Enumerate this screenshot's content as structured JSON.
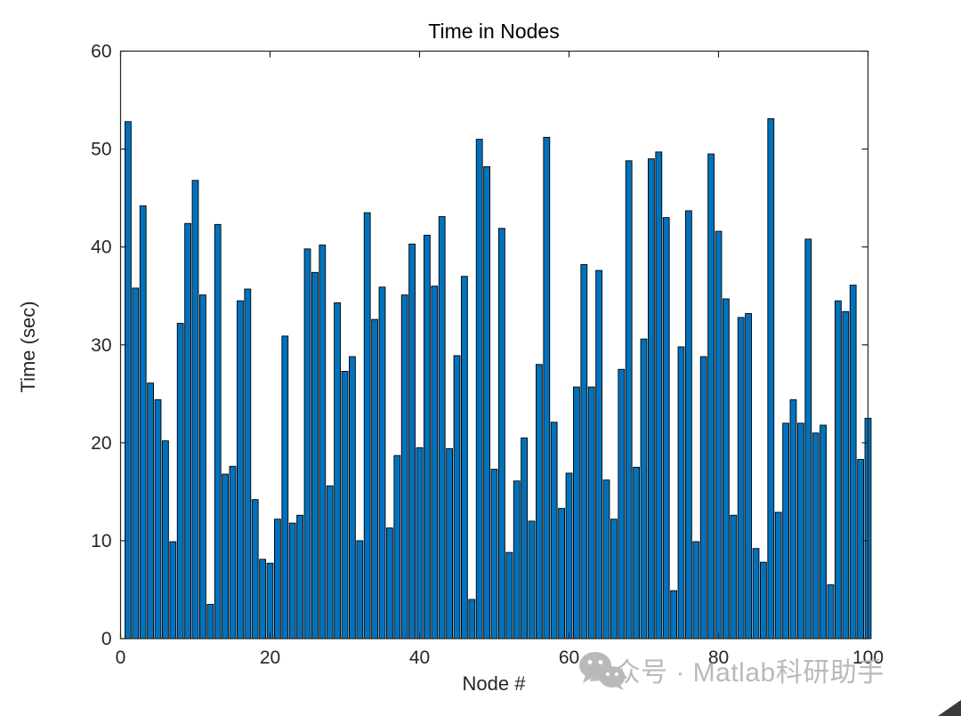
{
  "watermark": {
    "icon": "wechat-icon",
    "text": "公众号 · Matlab科研助手",
    "color": "#b4b4b4"
  },
  "chart_data": {
    "type": "bar",
    "title": "Time in Nodes",
    "xlabel": "Node #",
    "ylabel": "Time (sec)",
    "xlim": [
      0,
      100
    ],
    "ylim": [
      0,
      60
    ],
    "x_ticks": [
      0,
      20,
      40,
      60,
      80,
      100
    ],
    "y_ticks": [
      0,
      10,
      20,
      30,
      40,
      50,
      60
    ],
    "grid": false,
    "legend": "none",
    "bar_color": "#0072BD",
    "bar_edge_color": "#000000",
    "axis_color": "#262626",
    "x_start": 1,
    "x_step": 1,
    "values": [
      52.8,
      35.8,
      44.2,
      26.1,
      24.4,
      20.2,
      9.9,
      32.2,
      42.4,
      46.8,
      35.1,
      3.5,
      42.3,
      16.8,
      17.6,
      34.5,
      35.7,
      14.2,
      8.1,
      7.7,
      12.2,
      30.9,
      11.8,
      12.6,
      39.8,
      37.4,
      40.2,
      15.6,
      34.3,
      27.3,
      28.8,
      10.0,
      43.5,
      32.6,
      35.9,
      11.3,
      18.7,
      35.1,
      40.3,
      19.5,
      41.2,
      36.0,
      43.1,
      19.4,
      28.9,
      37.0,
      4.0,
      51.0,
      48.2,
      17.3,
      41.9,
      8.8,
      16.1,
      20.5,
      12.0,
      28.0,
      51.2,
      22.1,
      13.3,
      16.9,
      25.7,
      38.2,
      25.7,
      37.6,
      16.2,
      12.2,
      27.5,
      48.8,
      17.5,
      30.6,
      49.0,
      49.7,
      43.0,
      4.9,
      29.8,
      43.7,
      9.9,
      28.8,
      49.5,
      41.6,
      34.7,
      12.6,
      32.8,
      33.2,
      9.2,
      7.8,
      53.1,
      12.9,
      22.0,
      24.4,
      22.0,
      40.8,
      21.0,
      21.8,
      5.5,
      34.5,
      33.4,
      36.1,
      18.3,
      22.5
    ]
  }
}
